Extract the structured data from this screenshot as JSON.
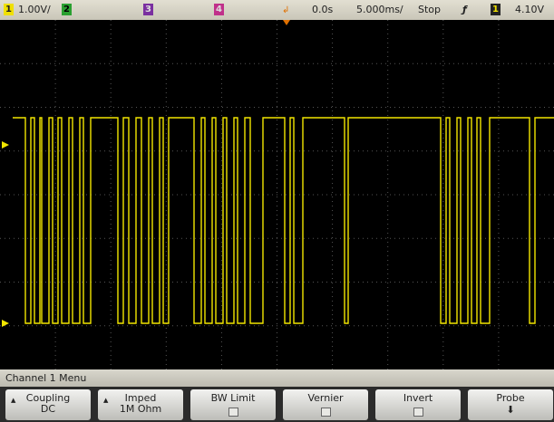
{
  "status_bar": {
    "ch1_badge": "1",
    "ch1_scale": "1.00V/",
    "ch2_badge": "2",
    "ch3_badge": "3",
    "ch4_badge": "4",
    "delay": "0.0s",
    "timebase": "5.000ms/",
    "run_state": "Stop",
    "trigger_source_badge": "1",
    "trigger_level": "4.10V"
  },
  "menu": {
    "title": "Channel 1 Menu",
    "softkeys": [
      {
        "label": "Coupling",
        "value": "DC"
      },
      {
        "label": "Imped",
        "value": "1M Ohm"
      },
      {
        "label": "BW Limit"
      },
      {
        "label": "Vernier"
      },
      {
        "label": "Invert"
      },
      {
        "label": "Probe"
      }
    ]
  }
}
